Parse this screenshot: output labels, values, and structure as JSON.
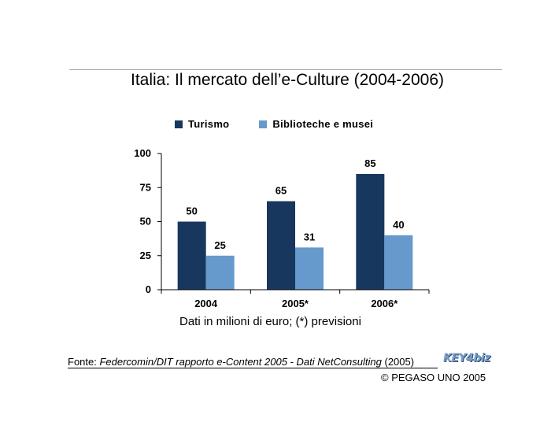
{
  "slide": {
    "title": "Italia: Il mercato dell’e-Culture (2004-2006)",
    "caption": "Dati in milioni di euro; (*) previsioni",
    "source_prefix": "Fonte: ",
    "source_italic": "Federcomin/DIT rapporto e-Content 2005 - Dati NetConsulting",
    "source_suffix": " (2005)",
    "logo": "KEY4biz",
    "copyright": "© PEGASO UNO 2005"
  },
  "colors": {
    "turismo": "#17375e",
    "biblioteche": "#6699cc"
  },
  "chart_data": {
    "type": "bar",
    "title": "Italia: Il mercato dell’e-Culture (2004-2006)",
    "xlabel": "",
    "ylabel": "",
    "categories": [
      "2004",
      "2005*",
      "2006*"
    ],
    "series": [
      {
        "name": "Turismo",
        "values": [
          50,
          65,
          85
        ],
        "color": "#17375e"
      },
      {
        "name": "Biblioteche e musei",
        "values": [
          25,
          31,
          40
        ],
        "color": "#6699cc"
      }
    ],
    "ylim": [
      0,
      100
    ],
    "yticks": [
      0,
      25,
      50,
      75,
      100
    ],
    "grid": false,
    "legend": "top",
    "data_labels": true
  }
}
